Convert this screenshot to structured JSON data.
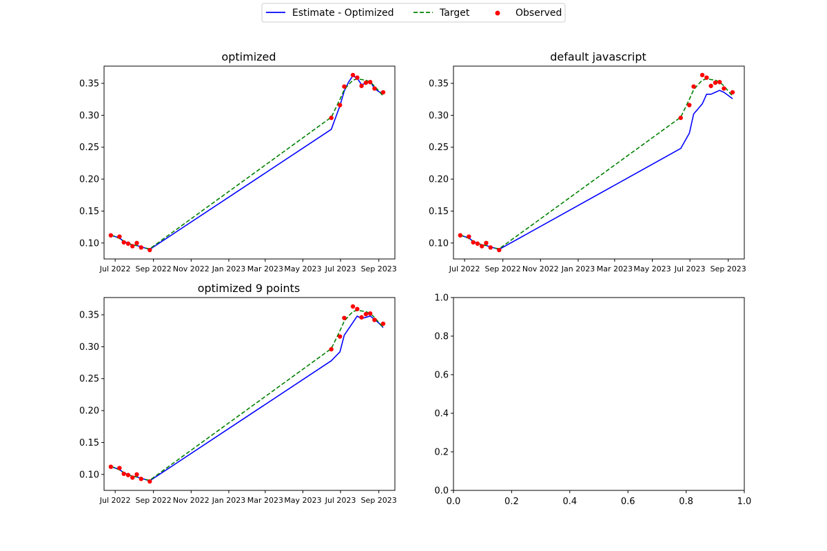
{
  "legend": {
    "items": [
      {
        "label": "Estimate - Optimized",
        "style": "solid",
        "color": "#0000ff"
      },
      {
        "label": "Target",
        "style": "dashed",
        "color": "#008000"
      },
      {
        "label": "Observed",
        "style": "dot",
        "color": "#ff0000"
      }
    ]
  },
  "chart_data": [
    {
      "type": "line",
      "title": "optimized",
      "xlabel": "",
      "ylabel": "",
      "x_ticks": [
        "Jul 2022",
        "Sep 2022",
        "Nov 2022",
        "Jan 2023",
        "Mar 2023",
        "May 2023",
        "Jul 2023",
        "Sep 2023"
      ],
      "x_tick_dates": [
        "2022-07-01",
        "2022-09-01",
        "2022-11-01",
        "2023-01-01",
        "2023-03-01",
        "2023-05-01",
        "2023-07-01",
        "2023-09-01"
      ],
      "xlim": [
        "2022-06-13",
        "2023-09-27"
      ],
      "ylim": [
        0.075,
        0.377
      ],
      "y_ticks": [
        0.1,
        0.15,
        0.2,
        0.25,
        0.3,
        0.35
      ],
      "series": [
        {
          "name": "Estimate - Optimized",
          "style": "solid",
          "color": "#0000ff",
          "x": [
            "2022-06-24",
            "2022-07-08",
            "2022-07-15",
            "2022-07-22",
            "2022-07-29",
            "2022-08-05",
            "2022-08-12",
            "2022-08-26",
            "2023-06-16",
            "2023-06-30",
            "2023-07-07",
            "2023-07-14",
            "2023-07-21",
            "2023-07-28",
            "2023-08-04",
            "2023-08-11",
            "2023-08-18",
            "2023-08-25",
            "2023-09-01",
            "2023-09-08"
          ],
          "y": [
            0.112,
            0.108,
            0.102,
            0.1,
            0.097,
            0.096,
            0.094,
            0.09,
            0.278,
            0.315,
            0.338,
            0.352,
            0.362,
            0.358,
            0.348,
            0.35,
            0.353,
            0.342,
            0.337,
            0.334
          ]
        },
        {
          "name": "Target",
          "style": "dashed",
          "color": "#008000",
          "x": [
            "2022-06-24",
            "2022-07-08",
            "2022-07-15",
            "2022-07-22",
            "2022-07-29",
            "2022-08-05",
            "2022-08-12",
            "2022-08-26",
            "2023-06-16",
            "2023-06-30",
            "2023-07-07",
            "2023-07-14",
            "2023-07-21",
            "2023-07-28",
            "2023-08-04",
            "2023-08-11",
            "2023-08-18",
            "2023-08-25",
            "2023-09-01",
            "2023-09-08"
          ],
          "y": [
            0.113,
            0.107,
            0.103,
            0.1,
            0.097,
            0.096,
            0.093,
            0.091,
            0.297,
            0.325,
            0.34,
            0.348,
            0.355,
            0.357,
            0.356,
            0.355,
            0.352,
            0.346,
            0.338,
            0.33
          ]
        },
        {
          "name": "Observed",
          "style": "dot",
          "color": "#ff0000",
          "x": [
            "2022-06-24",
            "2022-07-08",
            "2022-07-15",
            "2022-07-22",
            "2022-07-29",
            "2022-08-05",
            "2022-08-12",
            "2022-08-26",
            "2023-06-16",
            "2023-06-30",
            "2023-07-07",
            "2023-07-21",
            "2023-07-28",
            "2023-08-04",
            "2023-08-11",
            "2023-08-18",
            "2023-08-25",
            "2023-09-08"
          ],
          "y": [
            0.112,
            0.11,
            0.101,
            0.099,
            0.095,
            0.1,
            0.093,
            0.089,
            0.296,
            0.316,
            0.345,
            0.363,
            0.359,
            0.346,
            0.351,
            0.352,
            0.342,
            0.336
          ]
        }
      ]
    },
    {
      "type": "line",
      "title": "default javascript",
      "xlabel": "",
      "ylabel": "",
      "x_ticks": [
        "Jul 2022",
        "Sep 2022",
        "Nov 2022",
        "Jan 2023",
        "Mar 2023",
        "May 2023",
        "Jul 2023",
        "Sep 2023"
      ],
      "x_tick_dates": [
        "2022-07-01",
        "2022-09-01",
        "2022-11-01",
        "2023-01-01",
        "2023-03-01",
        "2023-05-01",
        "2023-07-01",
        "2023-09-01"
      ],
      "xlim": [
        "2022-06-13",
        "2023-09-27"
      ],
      "ylim": [
        0.075,
        0.377
      ],
      "y_ticks": [
        0.1,
        0.15,
        0.2,
        0.25,
        0.3,
        0.35
      ],
      "series": [
        {
          "name": "Estimate - Optimized",
          "style": "solid",
          "color": "#0000ff",
          "x": [
            "2022-06-24",
            "2022-07-08",
            "2022-07-15",
            "2022-07-22",
            "2022-07-29",
            "2022-08-05",
            "2022-08-12",
            "2022-08-26",
            "2023-06-16",
            "2023-06-30",
            "2023-07-07",
            "2023-07-14",
            "2023-07-21",
            "2023-07-28",
            "2023-08-04",
            "2023-08-11",
            "2023-08-18",
            "2023-08-25",
            "2023-09-01",
            "2023-09-08"
          ],
          "y": [
            0.112,
            0.108,
            0.102,
            0.1,
            0.097,
            0.096,
            0.094,
            0.09,
            0.248,
            0.272,
            0.302,
            0.31,
            0.318,
            0.333,
            0.333,
            0.336,
            0.339,
            0.336,
            0.331,
            0.326
          ]
        },
        {
          "name": "Target",
          "style": "dashed",
          "color": "#008000",
          "x": [
            "2022-06-24",
            "2022-07-08",
            "2022-07-15",
            "2022-07-22",
            "2022-07-29",
            "2022-08-05",
            "2022-08-12",
            "2022-08-26",
            "2023-06-16",
            "2023-06-30",
            "2023-07-07",
            "2023-07-14",
            "2023-07-21",
            "2023-07-28",
            "2023-08-04",
            "2023-08-11",
            "2023-08-18",
            "2023-08-25",
            "2023-09-01",
            "2023-09-08"
          ],
          "y": [
            0.113,
            0.107,
            0.103,
            0.1,
            0.097,
            0.096,
            0.093,
            0.091,
            0.297,
            0.325,
            0.34,
            0.348,
            0.355,
            0.357,
            0.356,
            0.355,
            0.352,
            0.346,
            0.338,
            0.33
          ]
        },
        {
          "name": "Observed",
          "style": "dot",
          "color": "#ff0000",
          "x": [
            "2022-06-24",
            "2022-07-08",
            "2022-07-15",
            "2022-07-22",
            "2022-07-29",
            "2022-08-05",
            "2022-08-12",
            "2022-08-26",
            "2023-06-16",
            "2023-06-30",
            "2023-07-07",
            "2023-07-21",
            "2023-07-28",
            "2023-08-04",
            "2023-08-11",
            "2023-08-18",
            "2023-08-25",
            "2023-09-08"
          ],
          "y": [
            0.112,
            0.11,
            0.101,
            0.099,
            0.095,
            0.1,
            0.093,
            0.089,
            0.296,
            0.316,
            0.345,
            0.363,
            0.359,
            0.346,
            0.351,
            0.352,
            0.342,
            0.336
          ]
        }
      ]
    },
    {
      "type": "line",
      "title": "optimized 9 points",
      "xlabel": "",
      "ylabel": "",
      "x_ticks": [
        "Jul 2022",
        "Sep 2022",
        "Nov 2022",
        "Jan 2023",
        "Mar 2023",
        "May 2023",
        "Jul 2023",
        "Sep 2023"
      ],
      "x_tick_dates": [
        "2022-07-01",
        "2022-09-01",
        "2022-11-01",
        "2023-01-01",
        "2023-03-01",
        "2023-05-01",
        "2023-07-01",
        "2023-09-01"
      ],
      "xlim": [
        "2022-06-13",
        "2023-09-27"
      ],
      "ylim": [
        0.075,
        0.377
      ],
      "y_ticks": [
        0.1,
        0.15,
        0.2,
        0.25,
        0.3,
        0.35
      ],
      "series": [
        {
          "name": "Estimate - Optimized",
          "style": "solid",
          "color": "#0000ff",
          "x": [
            "2022-06-24",
            "2022-07-08",
            "2022-07-15",
            "2022-07-22",
            "2022-07-29",
            "2022-08-05",
            "2022-08-12",
            "2022-08-26",
            "2023-06-16",
            "2023-06-30",
            "2023-07-07",
            "2023-07-14",
            "2023-07-21",
            "2023-07-28",
            "2023-08-04",
            "2023-08-11",
            "2023-08-18",
            "2023-08-25",
            "2023-09-01",
            "2023-09-08"
          ],
          "y": [
            0.112,
            0.108,
            0.102,
            0.1,
            0.097,
            0.096,
            0.094,
            0.09,
            0.278,
            0.292,
            0.318,
            0.328,
            0.338,
            0.348,
            0.344,
            0.346,
            0.348,
            0.343,
            0.337,
            0.33
          ]
        },
        {
          "name": "Target",
          "style": "dashed",
          "color": "#008000",
          "x": [
            "2022-06-24",
            "2022-07-08",
            "2022-07-15",
            "2022-07-22",
            "2022-07-29",
            "2022-08-05",
            "2022-08-12",
            "2022-08-26",
            "2023-06-16",
            "2023-06-30",
            "2023-07-07",
            "2023-07-14",
            "2023-07-21",
            "2023-07-28",
            "2023-08-04",
            "2023-08-11",
            "2023-08-18",
            "2023-08-25",
            "2023-09-01",
            "2023-09-08"
          ],
          "y": [
            0.113,
            0.107,
            0.103,
            0.1,
            0.097,
            0.096,
            0.093,
            0.091,
            0.297,
            0.325,
            0.34,
            0.348,
            0.355,
            0.357,
            0.356,
            0.355,
            0.352,
            0.346,
            0.338,
            0.33
          ]
        },
        {
          "name": "Observed",
          "style": "dot",
          "color": "#ff0000",
          "x": [
            "2022-06-24",
            "2022-07-08",
            "2022-07-15",
            "2022-07-22",
            "2022-07-29",
            "2022-08-05",
            "2022-08-12",
            "2022-08-26",
            "2023-06-16",
            "2023-06-30",
            "2023-07-07",
            "2023-07-21",
            "2023-07-28",
            "2023-08-04",
            "2023-08-11",
            "2023-08-18",
            "2023-08-25",
            "2023-09-08"
          ],
          "y": [
            0.112,
            0.11,
            0.101,
            0.099,
            0.095,
            0.1,
            0.093,
            0.089,
            0.296,
            0.316,
            0.345,
            0.363,
            0.359,
            0.346,
            0.351,
            0.352,
            0.342,
            0.336
          ]
        }
      ]
    },
    {
      "type": "line",
      "title": "",
      "xlabel": "",
      "ylabel": "",
      "x_ticks": [
        "0.0",
        "0.2",
        "0.4",
        "0.6",
        "0.8",
        "1.0"
      ],
      "x_tick_values": [
        0.0,
        0.2,
        0.4,
        0.6,
        0.8,
        1.0
      ],
      "xlim": [
        0,
        1
      ],
      "ylim": [
        0,
        1
      ],
      "y_ticks": [
        0.0,
        0.2,
        0.4,
        0.6,
        0.8,
        1.0
      ],
      "y_tick_labels": [
        "0.0",
        "0.2",
        "0.4",
        "0.6",
        "0.8",
        "1.0"
      ],
      "series": []
    }
  ]
}
